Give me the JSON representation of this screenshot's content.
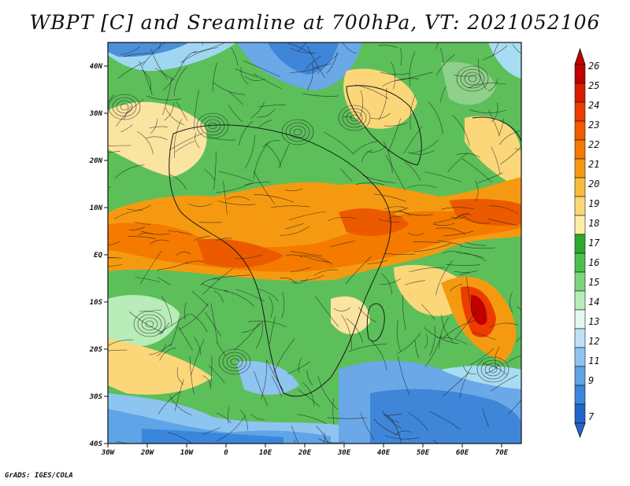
{
  "title": "WBPT [C] and Sreamline at 700hPa, VT: 2021052106",
  "credit": "GrADS: IGES/COLA",
  "map": {
    "lat_ticks": [
      "40N",
      "30N",
      "20N",
      "10N",
      "EQ",
      "10S",
      "20S",
      "30S",
      "40S"
    ],
    "lon_ticks": [
      "30W",
      "20W",
      "10W",
      "0",
      "10E",
      "20E",
      "30E",
      "40E",
      "50E",
      "60E",
      "70E"
    ]
  },
  "colorbar": {
    "labels": [
      "26",
      "25",
      "24",
      "23",
      "22",
      "21",
      "20",
      "19",
      "18",
      "17",
      "16",
      "15",
      "14",
      "13",
      "12",
      "11",
      "9",
      "7"
    ],
    "colors": [
      "#c00000",
      "#d81c00",
      "#ec3c00",
      "#f05a00",
      "#f47a00",
      "#f59a10",
      "#f8bb3c",
      "#fbd77a",
      "#fdeea6",
      "#2ea82e",
      "#4cc04c",
      "#7cd67c",
      "#b8ecb8",
      "#e4f8ee",
      "#bfe1f8",
      "#8ec4f0",
      "#5ea4e6",
      "#3a86dc",
      "#2266cc"
    ]
  }
}
